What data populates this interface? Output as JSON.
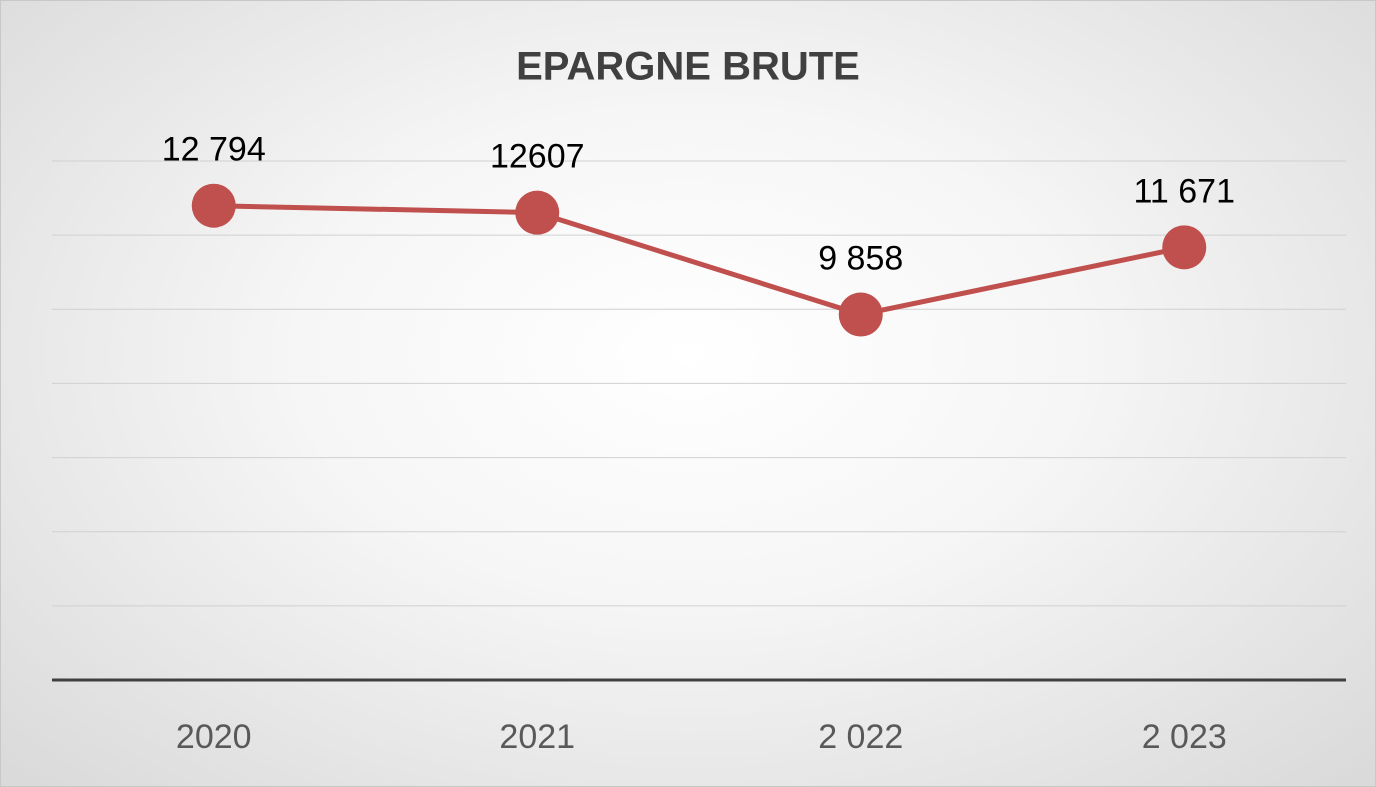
{
  "chart_data": {
    "type": "line",
    "title": "EPARGNE BRUTE",
    "categories": [
      "2020",
      "2021",
      "2 022",
      "2 023"
    ],
    "series": [
      {
        "name": "EPARGNE BRUTE",
        "color": "#c0504d",
        "values": [
          12794,
          12607,
          9858,
          11671
        ],
        "value_labels": [
          "12 794",
          "12607",
          "9 858",
          "11 671"
        ]
      }
    ],
    "ylim": [
      0,
      14000
    ],
    "yticks": [
      0,
      2000,
      4000,
      6000,
      8000,
      10000,
      12000,
      14000
    ],
    "grid": true,
    "legend": false
  }
}
